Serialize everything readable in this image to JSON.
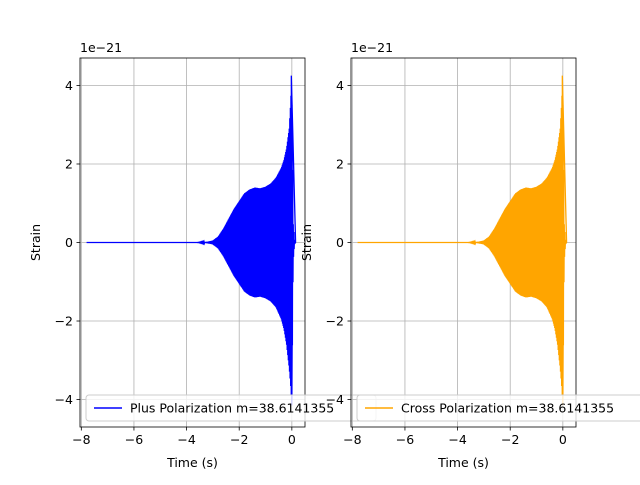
{
  "chart_data": [
    {
      "type": "line",
      "xlabel": "Time (s)",
      "ylabel": "Strain",
      "offset_text": "1e−21",
      "xlim": [
        -8.05,
        0.5
      ],
      "ylim": [
        -4.7,
        4.7
      ],
      "y_scale_factor": "1e-21",
      "xticks": [
        -8,
        -6,
        -4,
        -2,
        0
      ],
      "xtick_labels": [
        "−8",
        "−6",
        "−4",
        "−2",
        "0"
      ],
      "yticks": [
        -4,
        -2,
        0,
        2,
        4
      ],
      "ytick_labels": [
        "−4",
        "−2",
        "0",
        "2",
        "4"
      ],
      "grid": true,
      "legend_position": "lower-left",
      "series": [
        {
          "name": "Plus Polarization m=38.6141355",
          "color": "#0000ff",
          "envelope": {
            "x": [
              -7.8,
              -3.6,
              -3.2,
              -3.0,
              -2.8,
              -2.6,
              -2.4,
              -2.2,
              -2.0,
              -1.8,
              -1.6,
              -1.4,
              -1.2,
              -1.0,
              -0.8,
              -0.6,
              -0.4,
              -0.3,
              -0.2,
              -0.1,
              -0.05,
              0.0,
              0.05,
              0.1,
              0.15
            ],
            "upper": [
              0.0,
              0.0,
              0.02,
              0.05,
              0.15,
              0.35,
              0.6,
              0.85,
              1.05,
              1.25,
              1.35,
              1.4,
              1.38,
              1.42,
              1.5,
              1.65,
              1.9,
              2.1,
              2.4,
              2.9,
              3.5,
              4.25,
              0.5,
              0.05,
              0.0
            ],
            "lower": [
              0.0,
              0.0,
              -0.02,
              -0.05,
              -0.15,
              -0.35,
              -0.6,
              -0.85,
              -1.05,
              -1.25,
              -1.35,
              -1.4,
              -1.38,
              -1.42,
              -1.5,
              -1.65,
              -1.95,
              -2.2,
              -2.6,
              -3.2,
              -3.6,
              -4.15,
              -0.5,
              -0.05,
              0.0
            ]
          }
        }
      ]
    },
    {
      "type": "line",
      "xlabel": "Time (s)",
      "ylabel": "Strain",
      "offset_text": "1e−21",
      "xlim": [
        -8.05,
        0.5
      ],
      "ylim": [
        -4.7,
        4.7
      ],
      "y_scale_factor": "1e-21",
      "xticks": [
        -8,
        -6,
        -4,
        -2,
        0
      ],
      "xtick_labels": [
        "−8",
        "−6",
        "−4",
        "−2",
        "0"
      ],
      "yticks": [
        -4,
        -2,
        0,
        2,
        4
      ],
      "ytick_labels": [
        "−4",
        "−2",
        "0",
        "2",
        "4"
      ],
      "grid": true,
      "legend_position": "lower-left",
      "series": [
        {
          "name": "Cross Polarization m=38.6141355",
          "color": "#ffa500",
          "envelope": {
            "x": [
              -7.8,
              -3.6,
              -3.2,
              -3.0,
              -2.8,
              -2.6,
              -2.4,
              -2.2,
              -2.0,
              -1.8,
              -1.6,
              -1.4,
              -1.2,
              -1.0,
              -0.8,
              -0.6,
              -0.4,
              -0.3,
              -0.2,
              -0.1,
              -0.05,
              0.0,
              0.05,
              0.1,
              0.15
            ],
            "upper": [
              0.0,
              0.0,
              0.02,
              0.05,
              0.15,
              0.35,
              0.6,
              0.85,
              1.05,
              1.25,
              1.35,
              1.4,
              1.38,
              1.42,
              1.5,
              1.65,
              1.9,
              2.1,
              2.4,
              2.9,
              3.5,
              4.25,
              0.5,
              0.05,
              0.0
            ],
            "lower": [
              0.0,
              0.0,
              -0.02,
              -0.05,
              -0.15,
              -0.35,
              -0.6,
              -0.85,
              -1.05,
              -1.25,
              -1.35,
              -1.4,
              -1.38,
              -1.42,
              -1.5,
              -1.65,
              -1.95,
              -2.2,
              -2.6,
              -3.2,
              -3.6,
              -4.15,
              -0.5,
              -0.05,
              0.0
            ]
          }
        }
      ]
    }
  ]
}
